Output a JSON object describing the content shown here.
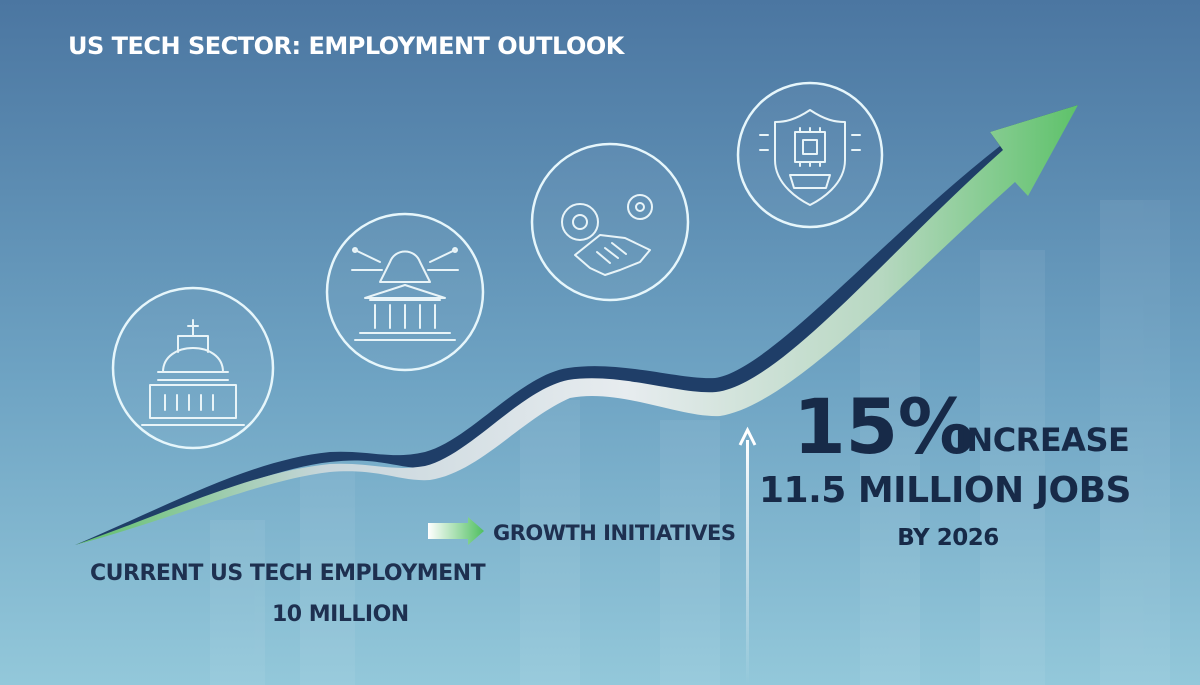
{
  "header": {
    "title": "US TECH SECTOR: EMPLOYMENT OUTLOOK"
  },
  "baseline": {
    "label": "CURRENT US TECH EMPLOYMENT",
    "value": "10 MILLION"
  },
  "legend": {
    "label": "GROWTH INITIATIVES"
  },
  "outlook": {
    "percent": "15%",
    "percent_label": "INCREASE",
    "jobs": "11.5 MILLION JOBS",
    "year": "BY 2026"
  }
}
